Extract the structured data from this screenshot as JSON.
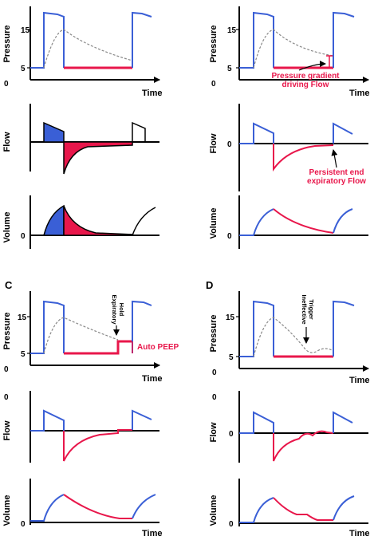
{
  "panel_letters": {
    "A": "",
    "B": "",
    "C": "C",
    "D": "D"
  },
  "axes": {
    "pressure": "Pressure",
    "flow": "Flow",
    "volume": "Volume",
    "time": "Time"
  },
  "ticks": {
    "p15": "15",
    "p5": "5",
    "zero": "0"
  },
  "annotations": {
    "gradient_1": "Pressure gradient",
    "gradient_2": "driving Flow",
    "persistent_1": "Persistent end",
    "persistent_2": "expiratory Flow",
    "auto_peep": "Auto PEEP",
    "exp_hold_1": "Expiratory",
    "exp_hold_2": "Hold",
    "ineff_1": "Ineffective",
    "ineff_2": "Trigger"
  },
  "colors": {
    "inspiration": "#3a5fd6",
    "expiration": "#e8174b",
    "axis": "#000000",
    "alveolar_pressure": "#888888"
  }
}
